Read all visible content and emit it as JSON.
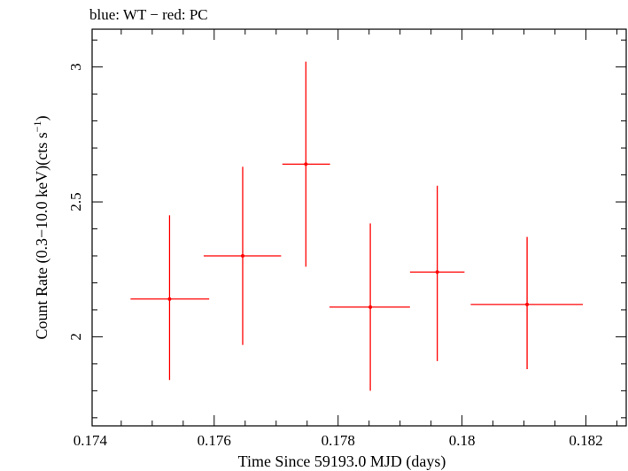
{
  "chart_data": {
    "type": "scatter",
    "title": "blue: WT − red: PC",
    "xlabel": "Time Since 59193.0 MJD (days)",
    "ylabel_main": "Count Rate (0.3−10.0 keV)(cts s",
    "ylabel_sup": "−1",
    "ylabel_tail": ")",
    "xlim": [
      0.17403,
      0.18265
    ],
    "ylim": [
      1.67,
      3.14
    ],
    "x_ticks": [
      0.174,
      0.176,
      0.178,
      0.18,
      0.182
    ],
    "x_tick_labels": [
      "0.174",
      "0.176",
      "0.178",
      "0.18",
      "0.182"
    ],
    "y_ticks": [
      2,
      2.5,
      3
    ],
    "y_tick_labels": [
      "2",
      "2.5",
      "3"
    ],
    "series": [
      {
        "color": "#ff0000",
        "points": [
          {
            "x": 0.17528,
            "y": 2.14,
            "xerr_lo": 0.00063,
            "xerr_hi": 0.00064,
            "yerr_lo": 0.3,
            "yerr_hi": 0.31
          },
          {
            "x": 0.17646,
            "y": 2.3,
            "xerr_lo": 0.00063,
            "xerr_hi": 0.00062,
            "yerr_lo": 0.33,
            "yerr_hi": 0.33
          },
          {
            "x": 0.17748,
            "y": 2.64,
            "xerr_lo": 0.00038,
            "xerr_hi": 0.00039,
            "yerr_lo": 0.38,
            "yerr_hi": 0.38
          },
          {
            "x": 0.17852,
            "y": 2.11,
            "xerr_lo": 0.00066,
            "xerr_hi": 0.00064,
            "yerr_lo": 0.31,
            "yerr_hi": 0.31
          },
          {
            "x": 0.1796,
            "y": 2.24,
            "xerr_lo": 0.00044,
            "xerr_hi": 0.00044,
            "yerr_lo": 0.33,
            "yerr_hi": 0.32
          },
          {
            "x": 0.18105,
            "y": 2.12,
            "xerr_lo": 0.00091,
            "xerr_hi": 0.0009,
            "yerr_lo": 0.24,
            "yerr_hi": 0.25
          }
        ]
      }
    ]
  }
}
